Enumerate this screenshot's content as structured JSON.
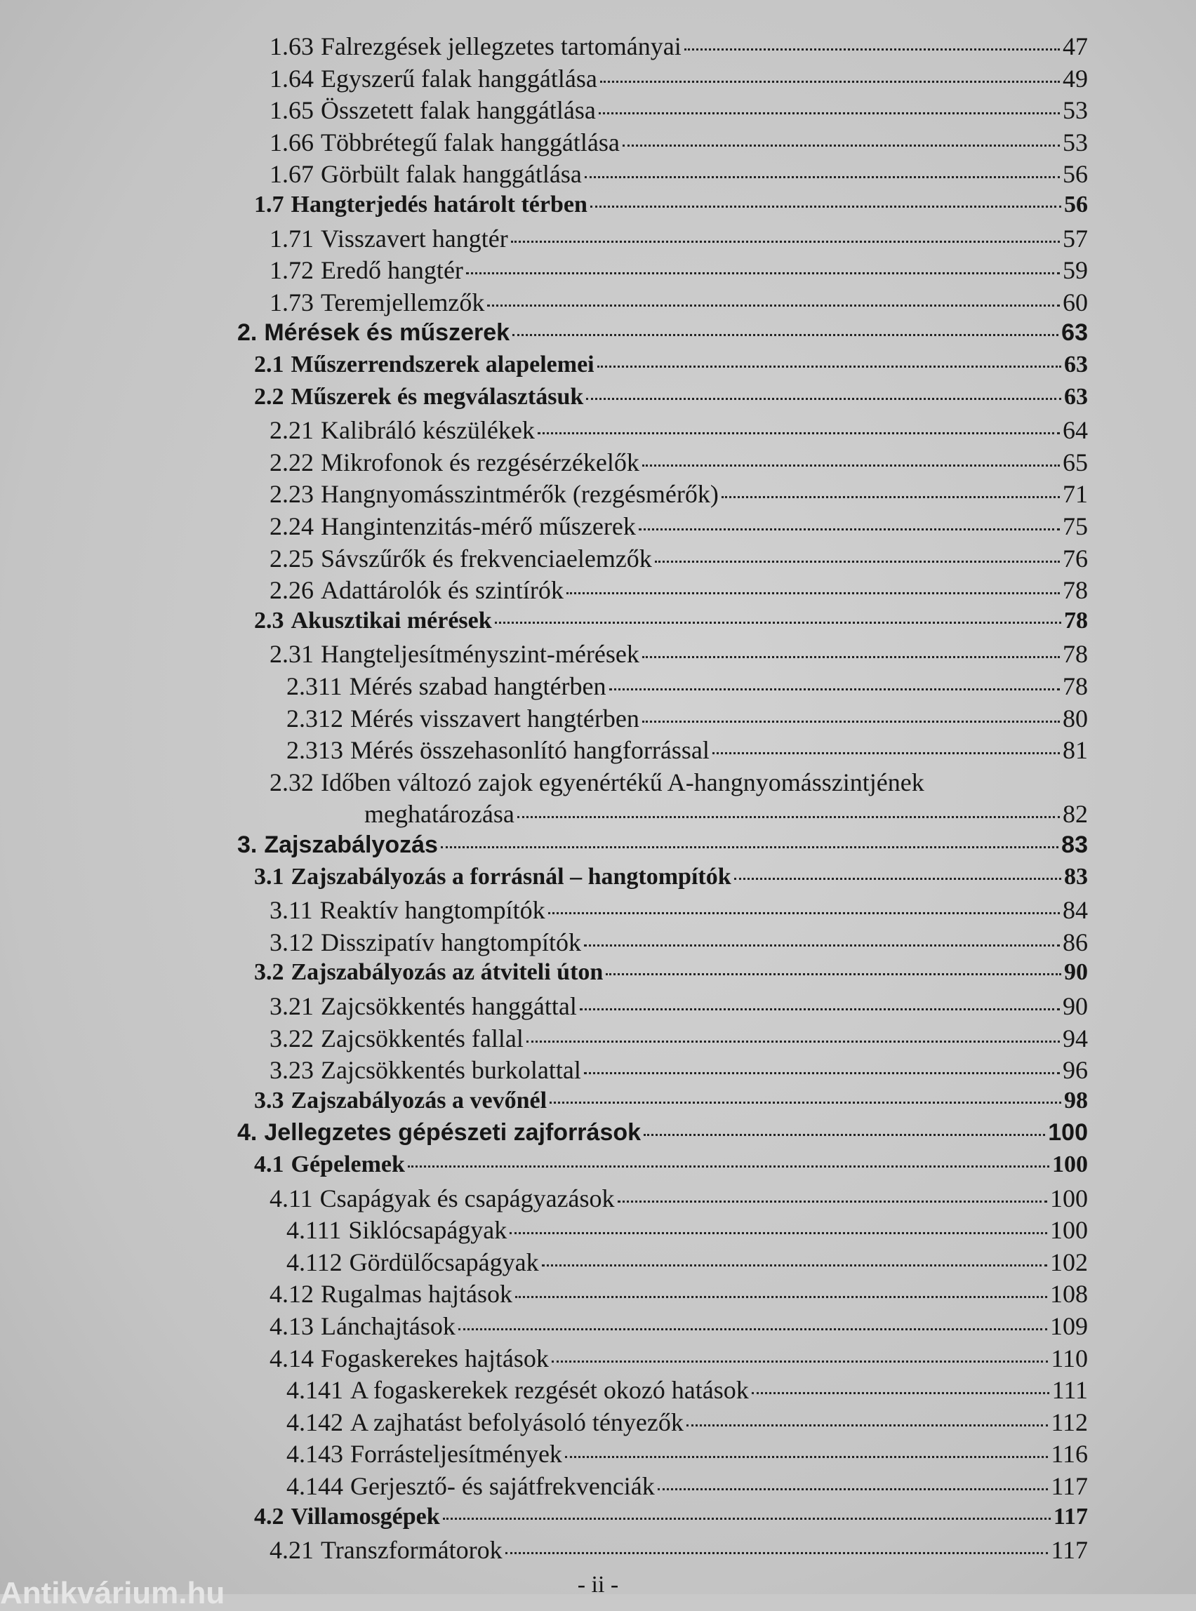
{
  "entries": [
    {
      "num": "1.63",
      "title": "Falrezgések jellegzetes tartományai",
      "page": 47
    },
    {
      "num": "1.64",
      "title": "Egyszerű falak hanggátlása",
      "page": 49
    },
    {
      "num": "1.65",
      "title": "Összetett falak hanggátlása",
      "page": 53
    },
    {
      "num": "1.66",
      "title": "Többrétegű falak hanggátlása",
      "page": 53
    },
    {
      "num": "1.67",
      "title": "Görbült falak hanggátlása",
      "page": 56
    },
    {
      "num": "1.7",
      "title": "Hangterjedés határolt térben",
      "page": 56
    },
    {
      "num": "1.71",
      "title": "Visszavert hangtér",
      "page": 57
    },
    {
      "num": "1.72",
      "title": "Eredő hangtér",
      "page": 59
    },
    {
      "num": "1.73",
      "title": "Teremjellemzők",
      "page": 60
    },
    {
      "num": "2.",
      "title": "Mérések és műszerek",
      "page": 63
    },
    {
      "num": "2.1",
      "title": "Műszerrendszerek alapelemei",
      "page": 63
    },
    {
      "num": "2.2",
      "title": "Műszerek és megválasztásuk",
      "page": 63
    },
    {
      "num": "2.21",
      "title": "Kalibráló készülékek",
      "page": 64
    },
    {
      "num": "2.22",
      "title": "Mikrofonok és rezgésérzékelők",
      "page": 65
    },
    {
      "num": "2.23",
      "title": "Hangnyomásszintmérők (rezgésmérők)",
      "page": 71
    },
    {
      "num": "2.24",
      "title": "Hangintenzitás-mérő műszerek",
      "page": 75
    },
    {
      "num": "2.25",
      "title": "Sávszűrők és frekvenciaelemzők",
      "page": 76
    },
    {
      "num": "2.26",
      "title": "Adattárolók és szintírók",
      "page": 78
    },
    {
      "num": "2.3",
      "title": "Akusztikai mérések",
      "page": 78
    },
    {
      "num": "2.31",
      "title": "Hangteljesítményszint-mérések",
      "page": 78
    },
    {
      "num": "2.311",
      "title": "Mérés szabad hangtérben",
      "page": 78
    },
    {
      "num": "2.312",
      "title": "Mérés visszavert hangtérben",
      "page": 80
    },
    {
      "num": "2.313",
      "title": "Mérés összehasonlító hangforrással",
      "page": 81
    },
    {
      "num": "2.32",
      "title": [
        "Időben változó zajok egyenértékű A-hangnyomásszintjének",
        "meghatározása"
      ],
      "page": 82
    },
    {
      "num": "3.",
      "title": "Zajszabályozás",
      "page": 83
    },
    {
      "num": "3.1",
      "title": "Zajszabályozás a forrásnál – hangtompítók",
      "page": 83
    },
    {
      "num": "3.11",
      "title": "Reaktív hangtompítók",
      "page": 84
    },
    {
      "num": "3.12",
      "title": "Disszipatív hangtompítók",
      "page": 86
    },
    {
      "num": "3.2",
      "title": "Zajszabályozás az átviteli úton",
      "page": 90
    },
    {
      "num": "3.21",
      "title": "Zajcsökkentés hanggáttal",
      "page": 90
    },
    {
      "num": "3.22",
      "title": "Zajcsökkentés fallal",
      "page": 94
    },
    {
      "num": "3.23",
      "title": "Zajcsökkentés burkolattal",
      "page": 96
    },
    {
      "num": "3.3",
      "title": "Zajszabályozás a vevőnél",
      "page": 98
    },
    {
      "num": "4.",
      "title": "Jellegzetes gépészeti zajforrások",
      "page": 100
    },
    {
      "num": "4.1",
      "title": "Gépelemek",
      "page": 100
    },
    {
      "num": "4.11",
      "title": "Csapágyak és csapágyazások",
      "page": 100
    },
    {
      "num": "4.111",
      "title": "Siklócsapágyak",
      "page": 100
    },
    {
      "num": "4.112",
      "title": "Gördülőcsapágyak",
      "page": 102
    },
    {
      "num": "4.12",
      "title": "Rugalmas hajtások",
      "page": 108
    },
    {
      "num": "4.13",
      "title": "Lánchajtások",
      "page": 109
    },
    {
      "num": "4.14",
      "title": "Fogaskerekes hajtások",
      "page": 110
    },
    {
      "num": "4.141",
      "title": "A fogaskerekek rezgését okozó hatások",
      "page": 111
    },
    {
      "num": "4.142",
      "title": "A zajhatást befolyásoló tényezők",
      "page": 112
    },
    {
      "num": "4.143",
      "title": "Forrásteljesítmények",
      "page": 116
    },
    {
      "num": "4.144",
      "title": "Gerjesztő- és sajátfrekvenciák",
      "page": 117
    },
    {
      "num": "4.2",
      "title": "Villamosgépek",
      "page": 117
    },
    {
      "num": "4.21",
      "title": "Transzformátorok",
      "page": 117
    }
  ],
  "footer": "- ii -",
  "watermark": "Antikvárium.hu"
}
